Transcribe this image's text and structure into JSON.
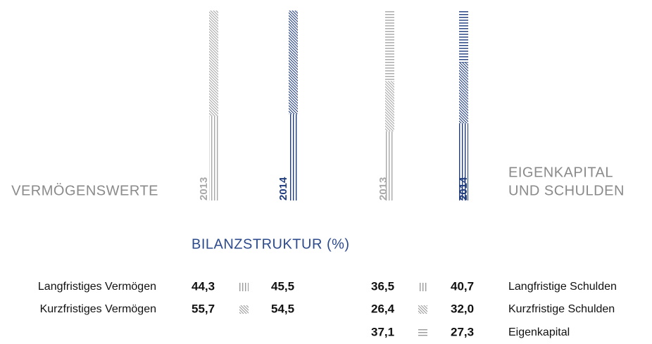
{
  "chart_data": {
    "type": "bar",
    "title": "BILANZSTRUKTUR (%)",
    "categories": [
      "2013",
      "2014",
      "2013",
      "2014"
    ],
    "category_colors": [
      "#a8a8a8",
      "#1f3c7e",
      "#a8a8a8",
      "#1f3c7e"
    ],
    "groups": [
      {
        "label_lines": [
          "VERMÖGENSWERTE"
        ]
      },
      {
        "label_lines": [
          "EIGENKAPITAL",
          "UND SCHULDEN"
        ]
      }
    ],
    "ylim": [
      0,
      100
    ],
    "stacked": true,
    "series": [
      {
        "name": "Langfristiges Vermögen",
        "pattern": "vertical",
        "values": [
          44.3,
          45.5,
          null,
          null
        ],
        "value_labels": [
          "44,3",
          "45,5",
          null,
          null
        ]
      },
      {
        "name": "Kurzfristiges Vermögen",
        "pattern": "diagonal",
        "values": [
          55.7,
          54.5,
          null,
          null
        ],
        "value_labels": [
          "55,7",
          "54,5",
          null,
          null
        ]
      },
      {
        "name": "Langfristige Schulden",
        "pattern": "vertical",
        "values": [
          null,
          null,
          36.5,
          40.7
        ],
        "value_labels": [
          null,
          null,
          "36,5",
          "40,7"
        ]
      },
      {
        "name": "Kurzfristige Schulden",
        "pattern": "diagonal",
        "values": [
          null,
          null,
          26.4,
          32.0
        ],
        "value_labels": [
          null,
          null,
          "26,4",
          "32,0"
        ]
      },
      {
        "name": "Eigenkapital",
        "pattern": "horizontal",
        "values": [
          null,
          null,
          37.1,
          27.3
        ],
        "value_labels": [
          null,
          null,
          "37,1",
          "27,3"
        ]
      }
    ]
  }
}
